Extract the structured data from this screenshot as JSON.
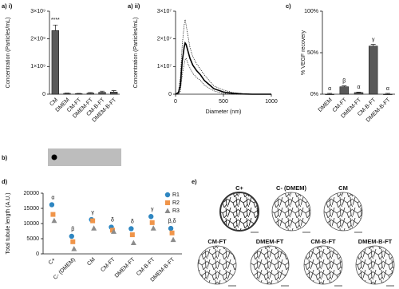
{
  "chart_data": [
    {
      "type": "bar",
      "panel_label": "a) i)",
      "y_label": "Concentration (Particles/mL)",
      "categories": [
        "CM",
        "DMEM",
        "CM-FT",
        "DMEM-FT",
        "CM-B-FT",
        "DMEM-B-FT"
      ],
      "values": [
        2300000000,
        30000000,
        20000000,
        40000000,
        70000000,
        80000000
      ],
      "errors": [
        200000000,
        10000000,
        10000000,
        20000000,
        40000000,
        50000000
      ],
      "letters": [
        "****",
        null,
        null,
        null,
        null,
        null
      ],
      "color": "#595959",
      "ylim": [
        0,
        3000000000
      ],
      "yticks": [
        0,
        {
          "value": 1000000000,
          "label": "1×10⁹"
        },
        {
          "value": 2000000000,
          "label": "2×10⁹"
        },
        {
          "value": 3000000000,
          "label": "3×10⁹"
        }
      ]
    },
    {
      "type": "line",
      "panel_label": "a) ii)",
      "y_label": "Concentration (Particles/mL)",
      "x_label": "Diameter (nm)",
      "x": [
        0,
        30,
        50,
        70,
        90,
        100,
        110,
        130,
        150,
        180,
        220,
        260,
        300,
        350,
        400,
        500,
        600,
        700,
        800,
        1000
      ],
      "series": [
        {
          "color": "#000000",
          "style": "solid",
          "values": [
            0,
            500000,
            3000000,
            12000000,
            17000000,
            18500000,
            18000000,
            15500000,
            13000000,
            10500000,
            8500000,
            7000000,
            5000000,
            3500000,
            2000000,
            800000,
            300000,
            100000,
            0,
            0
          ]
        },
        {
          "color": "#000000",
          "style": "dotted",
          "values": [
            0,
            1000000,
            6000000,
            18000000,
            25000000,
            27000000,
            25000000,
            21000000,
            17000000,
            13500000,
            11000000,
            9000000,
            7000000,
            5000000,
            3000000,
            1500000,
            600000,
            200000,
            0,
            0
          ]
        },
        {
          "color": "#000000",
          "style": "dotted",
          "values": [
            0,
            0,
            1000000,
            7000000,
            11000000,
            12500000,
            13000000,
            11000000,
            9500000,
            7500000,
            6000000,
            5000000,
            3300000,
            2200000,
            1200000,
            300000,
            0,
            0,
            0,
            0
          ]
        }
      ],
      "xlim": [
        0,
        1000
      ],
      "xticks": [
        0,
        500,
        1000
      ],
      "ylim": [
        0,
        30000000
      ],
      "yticks": [
        0,
        {
          "value": 10000000,
          "label": "1×10⁷"
        },
        {
          "value": 20000000,
          "label": "2×10⁷"
        },
        {
          "value": 30000000,
          "label": "3×10⁷"
        }
      ]
    },
    {
      "type": "bar",
      "panel_label": "c)",
      "y_label": "% VEGF recovery",
      "categories": [
        "DMEM",
        "CM-FT",
        "DMEM-FT",
        "CM-B-FT",
        "DMEM-B-FT"
      ],
      "values": [
        0,
        9,
        2,
        58,
        0
      ],
      "errors": [
        1,
        1,
        0.5,
        2,
        1
      ],
      "letters": [
        "α",
        "β",
        "α",
        "γ",
        "α"
      ],
      "color": "#595959",
      "ylim": [
        0,
        100
      ],
      "yticks": [
        {
          "value": 0,
          "label": "0%"
        },
        {
          "value": 50,
          "label": "50%"
        },
        {
          "value": 100,
          "label": "100%"
        }
      ]
    },
    {
      "type": "scatter",
      "panel_label": "d)",
      "y_label": "Total tubule length (A.U.)",
      "categories": [
        "C+",
        "C- (DMEM)",
        "CM",
        "CM-FT",
        "DMEM-FT",
        "CM-B-FT",
        "DMEM-B-FT"
      ],
      "series": [
        {
          "name": "R1",
          "color": "#2e86c1",
          "marker": "circle",
          "values": [
            16200,
            5800,
            11300,
            8800,
            8300,
            12300,
            8400
          ]
        },
        {
          "name": "R2",
          "color": "#f0954a",
          "marker": "square",
          "values": [
            13000,
            4000,
            10900,
            7800,
            6300,
            10300,
            6900
          ]
        },
        {
          "name": "R3",
          "color": "#8c8c8c",
          "marker": "triangle",
          "values": [
            11000,
            1700,
            8500,
            7400,
            3700,
            8500,
            4700
          ]
        }
      ],
      "letters": [
        "α",
        "β",
        "γ",
        "δ",
        "δ",
        "γ",
        "β,δ"
      ],
      "ylim": [
        0,
        20000
      ],
      "yticks": [
        0,
        5000,
        10000,
        15000,
        20000
      ]
    }
  ],
  "panel_b": {
    "label": "b)"
  },
  "panel_e": {
    "label": "e)",
    "images": [
      "C+",
      "C- (DMEM)",
      "CM",
      "CM-FT",
      "DMEM-FT",
      "CM-B-FT",
      "DMEM-B-FT"
    ]
  }
}
